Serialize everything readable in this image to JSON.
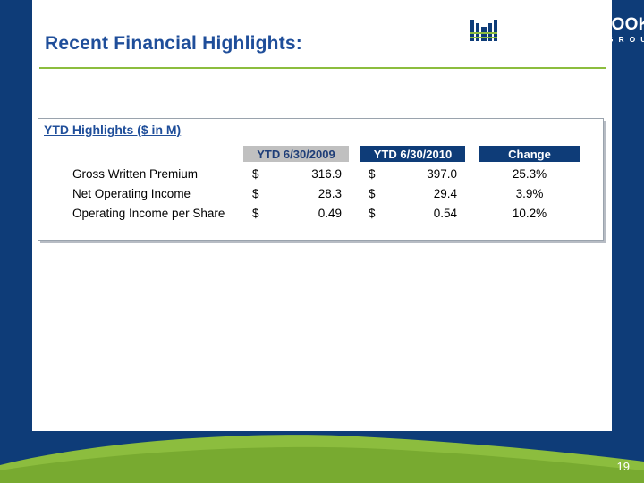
{
  "header": {
    "title": "Recent Financial Highlights:",
    "logo_name": "MEADOWBROOK",
    "logo_sub": "INSURANCE GROUP"
  },
  "table": {
    "title": "YTD Highlights ($ in M)",
    "columns": [
      "YTD 6/30/2009",
      "YTD 6/30/2010",
      "Change"
    ],
    "rows": [
      {
        "label": "Gross Written Premium",
        "cur1": "$",
        "v2009": "316.9",
        "cur2": "$",
        "v2010": "397.0",
        "change": "25.3%"
      },
      {
        "label": "Net Operating Income",
        "cur1": "$",
        "v2009": "28.3",
        "cur2": "$",
        "v2010": "29.4",
        "change": "3.9%"
      },
      {
        "label": "Operating Income per Share",
        "cur1": "$",
        "v2009": "0.49",
        "cur2": "$",
        "v2010": "0.54",
        "change": "10.2%"
      }
    ]
  },
  "footer": {
    "page_number": "19"
  },
  "colors": {
    "navy": "#0e3c78",
    "title_blue": "#1f4e9a",
    "green": "#8cbd3e",
    "header_gray": "#c0c0c0"
  }
}
